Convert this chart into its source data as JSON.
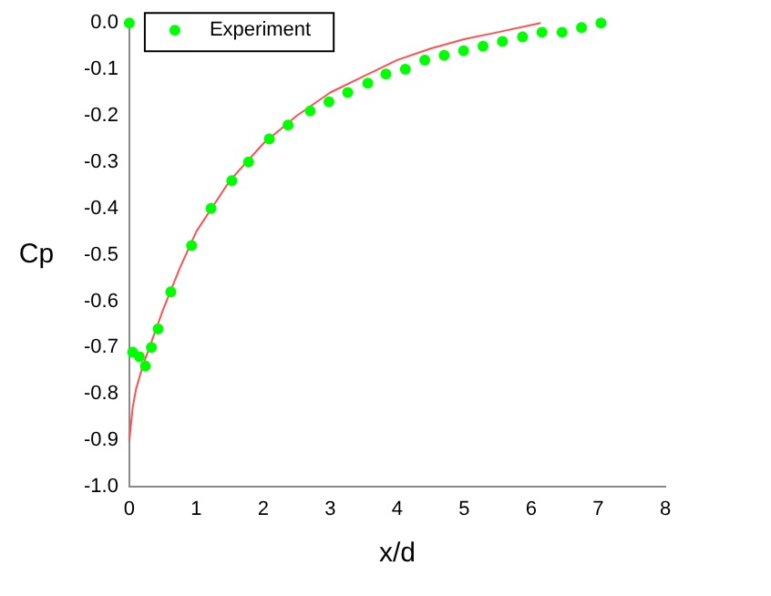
{
  "chart_data": {
    "type": "scatter",
    "xlabel": "x/d",
    "ylabel": "Cp",
    "xlim": [
      0,
      8
    ],
    "xticks": [
      0,
      1,
      2,
      3,
      4,
      5,
      6,
      7,
      8
    ],
    "ylim": [
      -1,
      0
    ],
    "yticks": [
      {
        "value": -1,
        "label": "-1.0"
      },
      -0.9,
      -0.8,
      -0.7,
      -0.6,
      -0.5,
      -0.4,
      -0.3,
      -0.2,
      -0.1,
      {
        "value": 0,
        "label": "0.0"
      }
    ],
    "grid": false,
    "legend": "top left",
    "series": [
      {
        "name": "Experiment",
        "type": "scatter",
        "marker": "circle",
        "color": "#00ff00",
        "x": [
          0,
          0.05,
          0.15,
          0.24,
          0.33,
          0.43,
          0.62,
          0.93,
          1.22,
          1.53,
          1.78,
          2.09,
          2.37,
          2.7,
          2.98,
          3.26,
          3.56,
          3.83,
          4.12,
          4.41,
          4.7,
          4.99,
          5.28,
          5.57,
          5.87,
          6.16,
          6.46,
          6.75,
          7.04
        ],
        "values": [
          0,
          -0.71,
          -0.72,
          -0.74,
          -0.7,
          -0.66,
          -0.58,
          -0.48,
          -0.4,
          -0.34,
          -0.3,
          -0.25,
          -0.22,
          -0.19,
          -0.17,
          -0.15,
          -0.13,
          -0.11,
          -0.1,
          -0.08,
          -0.07,
          -0.06,
          -0.05,
          -0.04,
          -0.03,
          -0.02,
          -0.02,
          -0.01,
          0
        ]
      },
      {
        "type": "line",
        "marker": "none",
        "line_style": "solid",
        "color": "#ff5050",
        "x": [
          0,
          0.05,
          0.1,
          0.2,
          0.3,
          0.5,
          0.75,
          1,
          1.5,
          2,
          2.5,
          3,
          3.5,
          4,
          4.5,
          5,
          5.5,
          6.14
        ],
        "values": [
          -0.9,
          -0.83,
          -0.79,
          -0.74,
          -0.7,
          -0.62,
          -0.53,
          -0.45,
          -0.34,
          -0.26,
          -0.2,
          -0.15,
          -0.115,
          -0.08,
          -0.055,
          -0.035,
          -0.02,
          0
        ]
      }
    ]
  }
}
